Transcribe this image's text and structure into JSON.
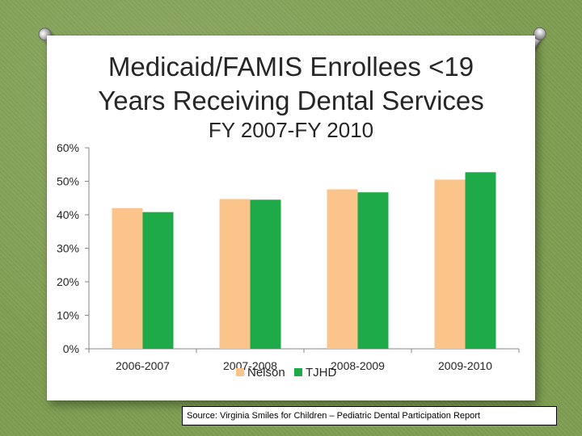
{
  "slide": {
    "title_line1": "Medicaid/FAMIS Enrollees <19",
    "title_line2": "Years Receiving Dental Services",
    "source": "Source: Virginia Smiles for Children – Pediatric Dental Participation Report"
  },
  "chart_data": {
    "type": "bar",
    "title": "FY 2007-FY 2010",
    "categories": [
      "2006-2007",
      "2007-2008",
      "2008-2009",
      "2009-2010"
    ],
    "series": [
      {
        "name": "Nelson",
        "color": "#fac48a",
        "values": [
          42,
          44.7,
          47.6,
          50.5
        ]
      },
      {
        "name": "TJHD",
        "color": "#1faa4a",
        "values": [
          40.8,
          44.5,
          46.7,
          52.7
        ]
      }
    ],
    "xlabel": "",
    "ylabel": "",
    "ylim": [
      0,
      60
    ],
    "y_ticks": [
      "0%",
      "10%",
      "20%",
      "30%",
      "40%",
      "50%",
      "60%"
    ],
    "gridlines": false,
    "legend_position": "bottom"
  }
}
